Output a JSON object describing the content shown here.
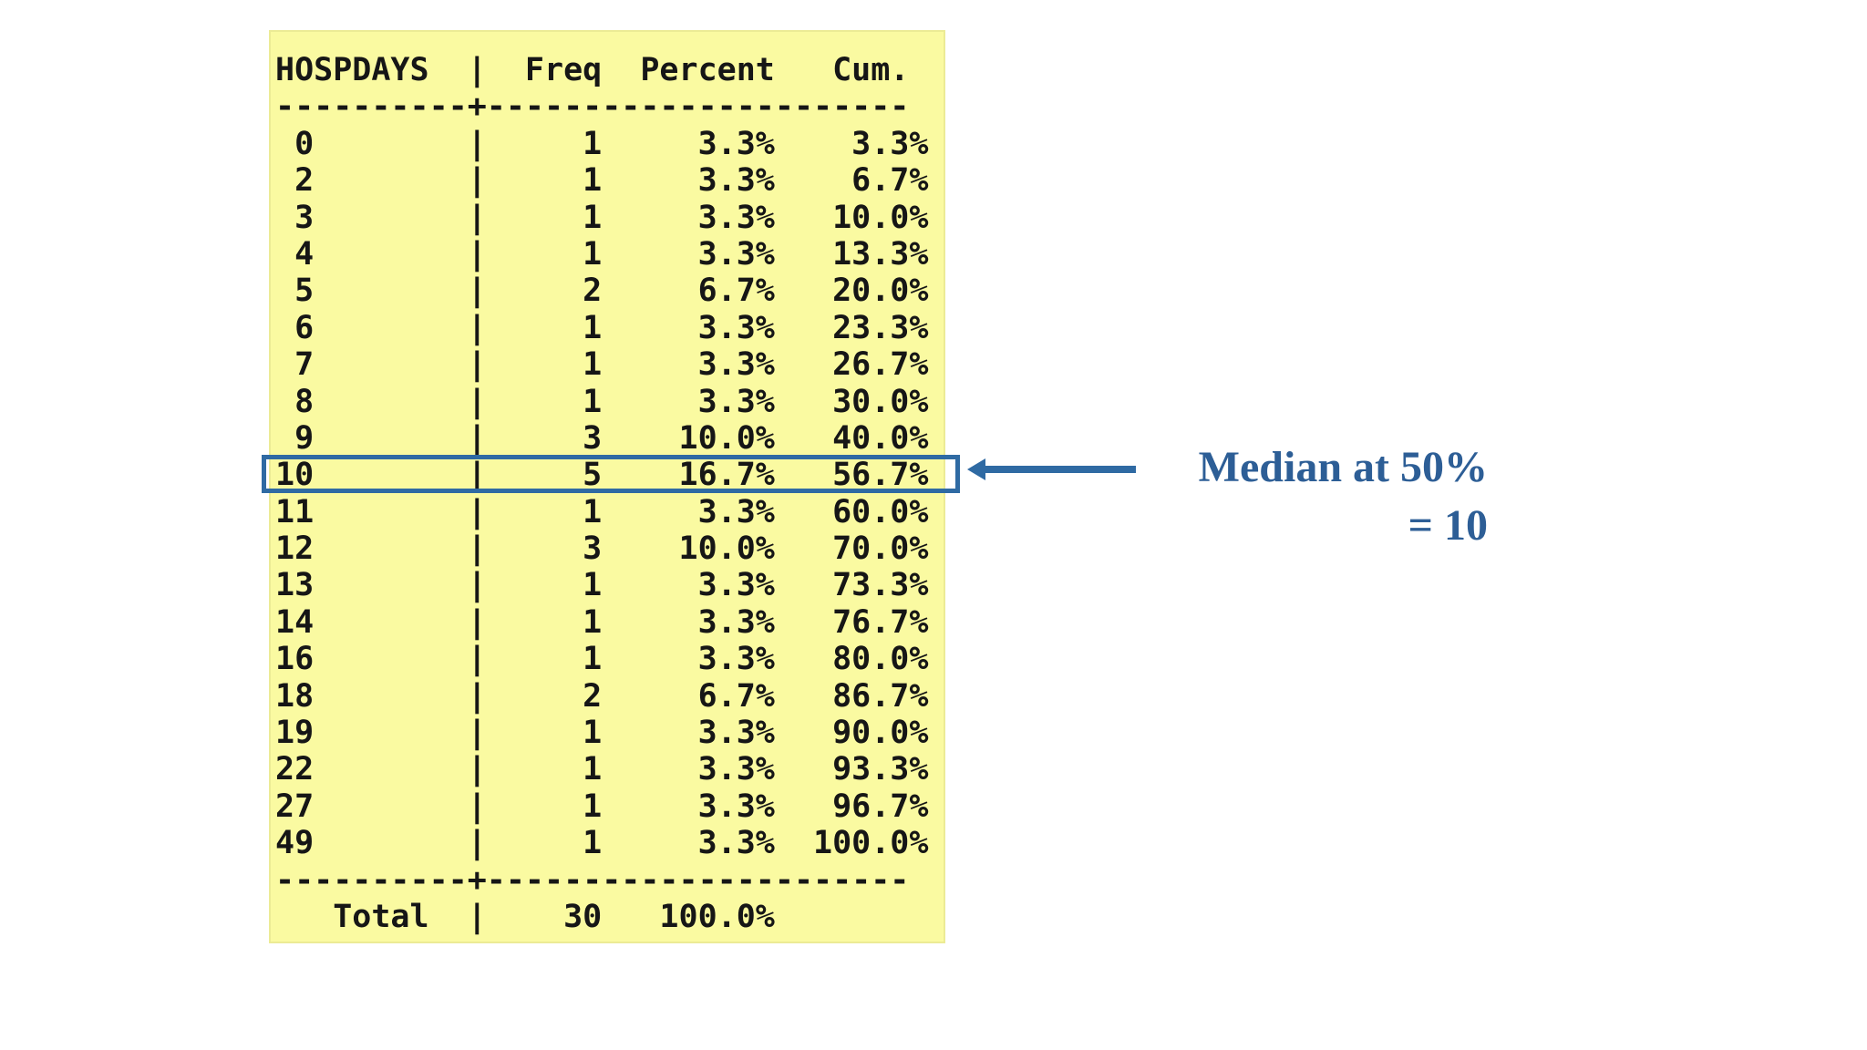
{
  "table": {
    "title_column": "HOSPDAYS",
    "columns": [
      "HOSPDAYS",
      "Freq",
      "Percent",
      "Cum."
    ],
    "rows": [
      {
        "value": "0",
        "freq": "1",
        "percent": "3.3%",
        "cum": "3.3%"
      },
      {
        "value": "2",
        "freq": "1",
        "percent": "3.3%",
        "cum": "6.7%"
      },
      {
        "value": "3",
        "freq": "1",
        "percent": "3.3%",
        "cum": "10.0%"
      },
      {
        "value": "4",
        "freq": "1",
        "percent": "3.3%",
        "cum": "13.3%"
      },
      {
        "value": "5",
        "freq": "2",
        "percent": "6.7%",
        "cum": "20.0%"
      },
      {
        "value": "6",
        "freq": "1",
        "percent": "3.3%",
        "cum": "23.3%"
      },
      {
        "value": "7",
        "freq": "1",
        "percent": "3.3%",
        "cum": "26.7%"
      },
      {
        "value": "8",
        "freq": "1",
        "percent": "3.3%",
        "cum": "30.0%"
      },
      {
        "value": "9",
        "freq": "3",
        "percent": "10.0%",
        "cum": "40.0%"
      },
      {
        "value": "10",
        "freq": "5",
        "percent": "16.7%",
        "cum": "56.7%"
      },
      {
        "value": "11",
        "freq": "1",
        "percent": "3.3%",
        "cum": "60.0%"
      },
      {
        "value": "12",
        "freq": "3",
        "percent": "10.0%",
        "cum": "70.0%"
      },
      {
        "value": "13",
        "freq": "1",
        "percent": "3.3%",
        "cum": "73.3%"
      },
      {
        "value": "14",
        "freq": "1",
        "percent": "3.3%",
        "cum": "76.7%"
      },
      {
        "value": "16",
        "freq": "1",
        "percent": "3.3%",
        "cum": "80.0%"
      },
      {
        "value": "18",
        "freq": "2",
        "percent": "6.7%",
        "cum": "86.7%"
      },
      {
        "value": "19",
        "freq": "1",
        "percent": "3.3%",
        "cum": "90.0%"
      },
      {
        "value": "22",
        "freq": "1",
        "percent": "3.3%",
        "cum": "93.3%"
      },
      {
        "value": "27",
        "freq": "1",
        "percent": "3.3%",
        "cum": "96.7%"
      },
      {
        "value": "49",
        "freq": "1",
        "percent": "3.3%",
        "cum": "100.0%"
      }
    ],
    "total": {
      "label": "Total",
      "freq": "30",
      "percent": "100.0%"
    },
    "highlighted_value": "10"
  },
  "annotation": {
    "line1": "Median at 50%",
    "line2": "= 10"
  },
  "chart_data": {
    "type": "table",
    "title": "HOSPDAYS frequency distribution",
    "categories": [
      0,
      2,
      3,
      4,
      5,
      6,
      7,
      8,
      9,
      10,
      11,
      12,
      13,
      14,
      16,
      18,
      19,
      22,
      27,
      49
    ],
    "series": [
      {
        "name": "Freq",
        "values": [
          1,
          1,
          1,
          1,
          2,
          1,
          1,
          1,
          3,
          5,
          1,
          3,
          1,
          1,
          1,
          2,
          1,
          1,
          1,
          1
        ]
      },
      {
        "name": "Percent",
        "values": [
          3.3,
          3.3,
          3.3,
          3.3,
          6.7,
          3.3,
          3.3,
          3.3,
          10.0,
          16.7,
          3.3,
          10.0,
          3.3,
          3.3,
          3.3,
          6.7,
          3.3,
          3.3,
          3.3,
          3.3
        ]
      },
      {
        "name": "Cum",
        "values": [
          3.3,
          6.7,
          10.0,
          13.3,
          20.0,
          23.3,
          26.7,
          30.0,
          40.0,
          56.7,
          60.0,
          70.0,
          73.3,
          76.7,
          80.0,
          86.7,
          90.0,
          93.3,
          96.7,
          100.0
        ]
      }
    ],
    "total_freq": 30,
    "total_percent": 100.0,
    "annotation": "Median at 50% = 10",
    "highlighted_category": 10
  },
  "colors": {
    "panel_yellow": "#fafaa1",
    "highlight_blue": "#2f6aa3",
    "annotation_blue": "#2d5e96",
    "table_text": "#161616"
  }
}
